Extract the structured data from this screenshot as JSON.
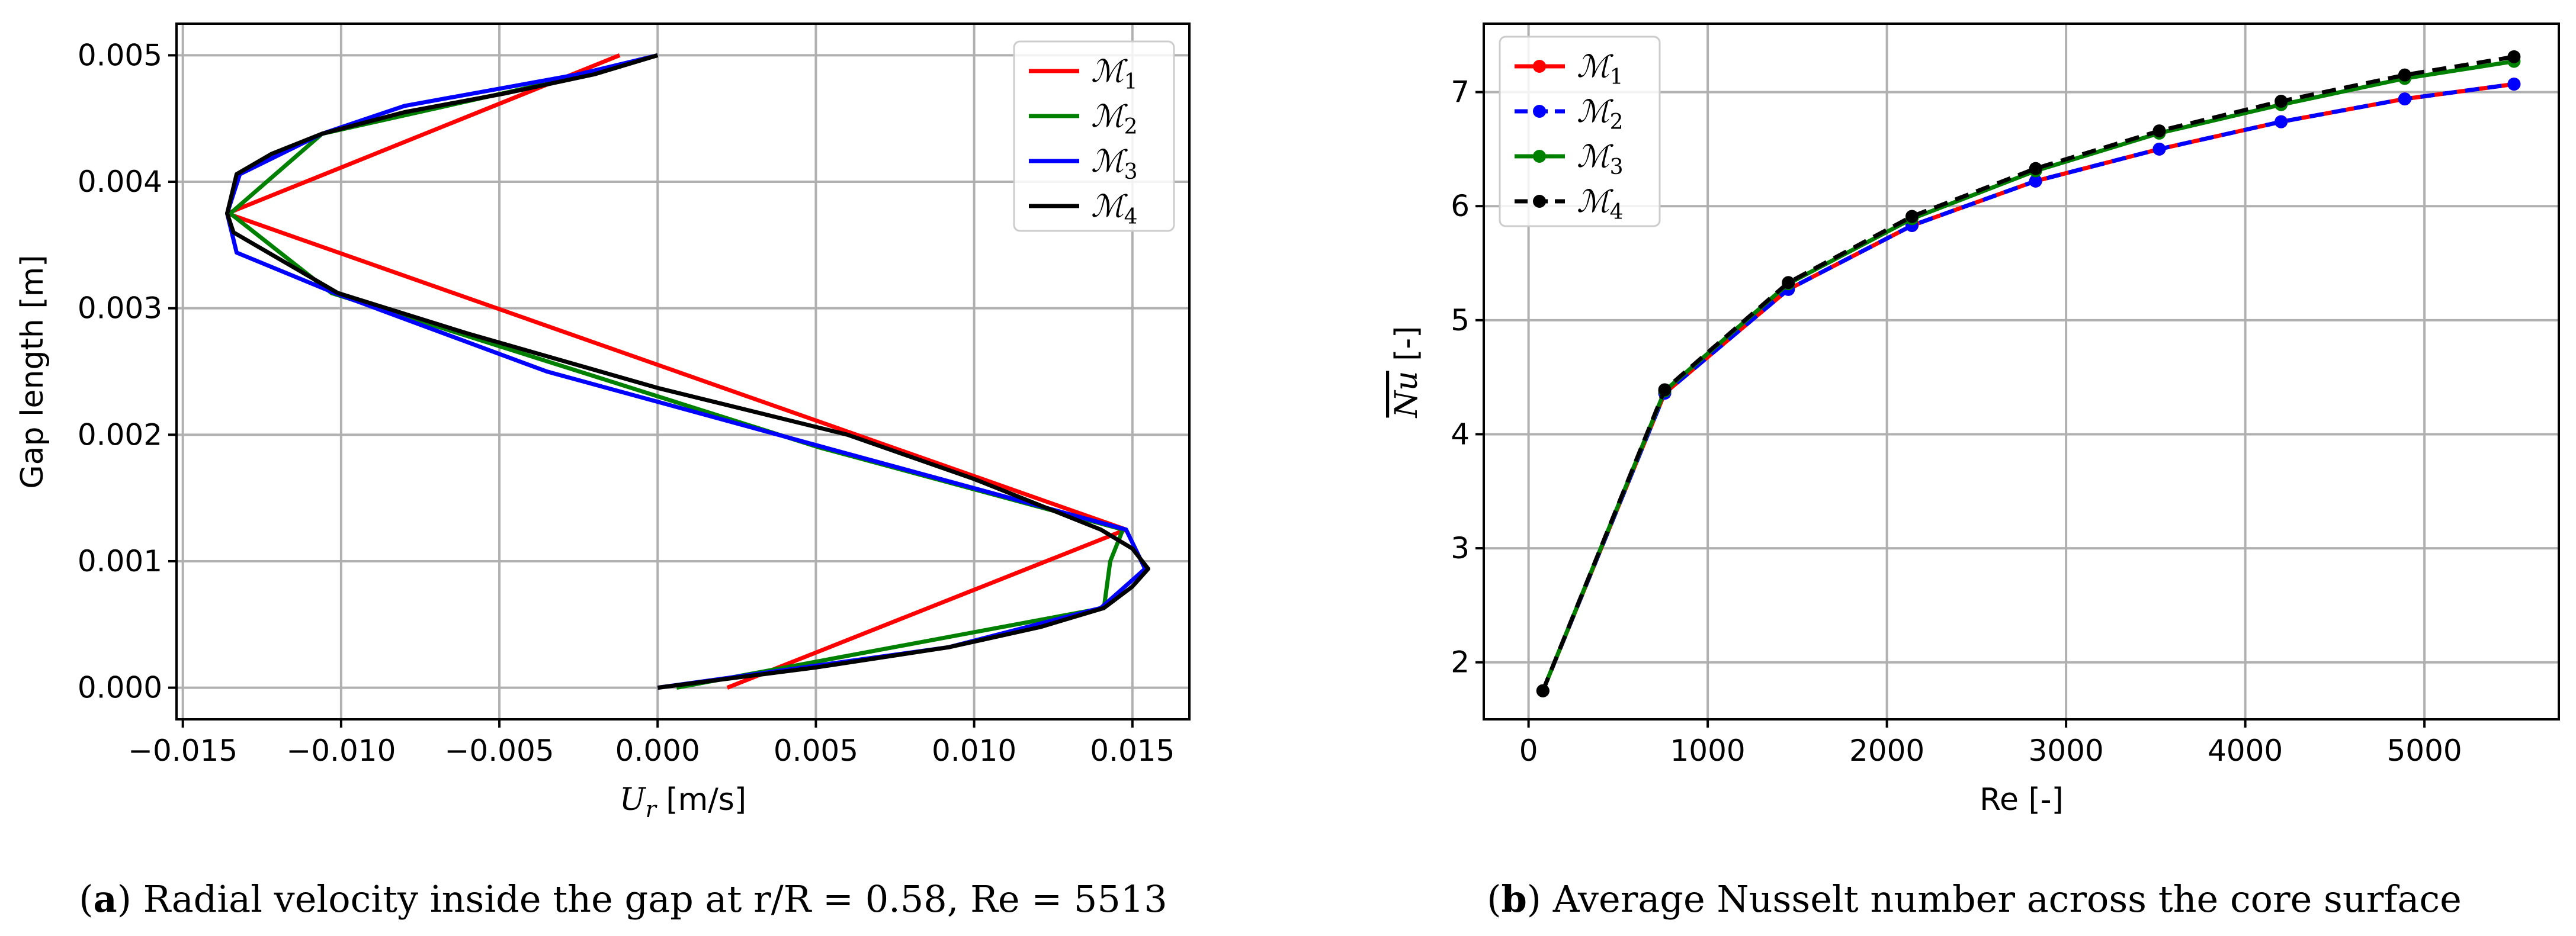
{
  "chart_data": [
    {
      "type": "line",
      "panel_id": "a",
      "xlabel_var": "U",
      "xlabel_sub": "r",
      "xlabel_unit": " [m/s]",
      "ylabel": "Gap length [m]",
      "xlim": [
        -0.0152,
        0.0168
      ],
      "ylim": [
        -0.00025,
        0.00525
      ],
      "xticks": [
        -0.015,
        -0.01,
        -0.005,
        0.0,
        0.005,
        0.01,
        0.015
      ],
      "xtick_labels": [
        "−0.015",
        "−0.010",
        "−0.005",
        "0.000",
        "0.005",
        "0.010",
        "0.015"
      ],
      "yticks": [
        0.0,
        0.001,
        0.002,
        0.003,
        0.004,
        0.005
      ],
      "ytick_labels": [
        "0.000",
        "0.001",
        "0.002",
        "0.003",
        "0.004",
        "0.005"
      ],
      "grid": true,
      "legend": "top-right",
      "series": [
        {
          "name": "ℳ",
          "sub": "1",
          "color": "#ff0000",
          "dash": "none",
          "markers": false,
          "x": [
            0.0022,
            0.0148,
            -0.0136,
            -0.0012
          ],
          "y": [
            0.0,
            0.00125,
            0.00375,
            0.005
          ]
        },
        {
          "name": "ℳ",
          "sub": "2",
          "color": "#008000",
          "dash": "none",
          "markers": false,
          "x": [
            0.0006,
            0.0141,
            0.0143,
            0.0147,
            0.0051,
            -0.0103,
            -0.0135,
            -0.0106,
            -0.0022,
            0.0
          ],
          "y": [
            0.0,
            0.00063,
            0.001,
            0.00125,
            0.0019,
            0.00312,
            0.00375,
            0.00438,
            0.00485,
            0.005
          ]
        },
        {
          "name": "ℳ",
          "sub": "3",
          "color": "#0000ff",
          "dash": "none",
          "markers": false,
          "x": [
            0.0,
            0.0092,
            0.014,
            0.0154,
            0.0148,
            0.006,
            -0.0035,
            -0.0102,
            -0.0133,
            -0.0136,
            -0.0132,
            -0.0106,
            -0.008,
            -0.0025,
            0.0
          ],
          "y": [
            0.0,
            0.00032,
            0.00063,
            0.00094,
            0.00125,
            0.00185,
            0.0025,
            0.00312,
            0.00344,
            0.00375,
            0.00406,
            0.00438,
            0.0046,
            0.00485,
            0.005
          ]
        },
        {
          "name": "ℳ",
          "sub": "4",
          "color": "#000000",
          "dash": "none",
          "markers": false,
          "x": [
            0.0,
            0.005,
            0.0092,
            0.0121,
            0.0141,
            0.015,
            0.0155,
            0.015,
            0.014,
            0.01,
            0.006,
            0.0,
            -0.006,
            -0.0101,
            -0.0123,
            -0.0134,
            -0.0136,
            -0.0133,
            -0.0122,
            -0.0106,
            -0.008,
            -0.0048,
            -0.002,
            0.0
          ],
          "y": [
            0.0,
            0.00016,
            0.00032,
            0.00048,
            0.00063,
            0.0008,
            0.00094,
            0.0011,
            0.00125,
            0.00165,
            0.002,
            0.00237,
            0.0028,
            0.00312,
            0.00344,
            0.0036,
            0.00375,
            0.00406,
            0.00422,
            0.00438,
            0.00455,
            0.0047,
            0.00485,
            0.005
          ]
        }
      ]
    },
    {
      "type": "line",
      "panel_id": "b",
      "xlabel": "Re [-]",
      "ylabel_var": "Nu",
      "ylabel_unit": " [-]",
      "xlim": [
        -250,
        5750
      ],
      "ylim": [
        1.5,
        7.6
      ],
      "xticks": [
        0,
        1000,
        2000,
        3000,
        4000,
        5000
      ],
      "xtick_labels": [
        "0",
        "1000",
        "2000",
        "3000",
        "4000",
        "5000"
      ],
      "yticks": [
        2,
        3,
        4,
        5,
        6,
        7
      ],
      "ytick_labels": [
        "2",
        "3",
        "4",
        "5",
        "6",
        "7"
      ],
      "grid": true,
      "legend": "top-left",
      "series": [
        {
          "name": "ℳ",
          "sub": "1",
          "color": "#ff0000",
          "dash": "none",
          "markers": true,
          "x": [
            80,
            760,
            1450,
            2140,
            2830,
            3520,
            4200,
            4890,
            5500
          ],
          "y": [
            1.75,
            4.36,
            5.27,
            5.83,
            6.22,
            6.5,
            6.74,
            6.94,
            7.07
          ]
        },
        {
          "name": "ℳ",
          "sub": "2",
          "color": "#0000ff",
          "dash": "dashed",
          "markers": true,
          "x": [
            80,
            760,
            1450,
            2140,
            2830,
            3520,
            4200,
            4890,
            5500
          ],
          "y": [
            1.75,
            4.36,
            5.27,
            5.83,
            6.22,
            6.5,
            6.74,
            6.94,
            7.07
          ]
        },
        {
          "name": "ℳ",
          "sub": "3",
          "color": "#008000",
          "dash": "none",
          "markers": true,
          "x": [
            80,
            760,
            1450,
            2140,
            2830,
            3520,
            4200,
            4890,
            5500
          ],
          "y": [
            1.75,
            4.38,
            5.32,
            5.89,
            6.31,
            6.64,
            6.89,
            7.12,
            7.27
          ]
        },
        {
          "name": "ℳ",
          "sub": "4",
          "color": "#000000",
          "dash": "dashed",
          "markers": true,
          "x": [
            80,
            760,
            1450,
            2140,
            2830,
            3520,
            4200,
            4890,
            5500
          ],
          "y": [
            1.75,
            4.39,
            5.33,
            5.91,
            6.33,
            6.66,
            6.92,
            7.15,
            7.31
          ]
        }
      ]
    }
  ],
  "captions": {
    "a": {
      "tag": "a",
      "text": " Radial velocity inside the gap at r/R = 0.58, Re = 5513"
    },
    "b": {
      "tag": "b",
      "text": " Average Nusselt number across the core surface"
    }
  }
}
